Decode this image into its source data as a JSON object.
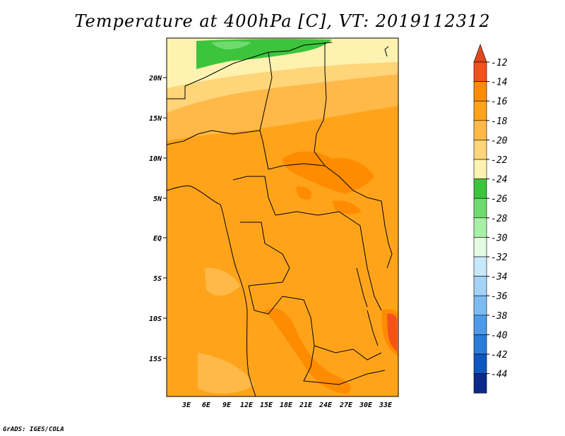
{
  "title": "Temperature at 400hPa [C], VT: 2019112312",
  "credit": "GrADS: IGES/COLA",
  "map": {
    "region": "Central Africa",
    "lon_labels": [
      "3E",
      "6E",
      "9E",
      "12E",
      "15E",
      "18E",
      "21E",
      "24E",
      "27E",
      "30E",
      "33E"
    ],
    "lat_labels": [
      "20N",
      "15N",
      "10N",
      "5N",
      "EQ",
      "5S",
      "10S",
      "15S"
    ]
  },
  "colorbar": {
    "labels": [
      "-12",
      "-14",
      "-16",
      "-18",
      "-20",
      "-22",
      "-24",
      "-26",
      "-28",
      "-30",
      "-32",
      "-34",
      "-36",
      "-38",
      "-40",
      "-42",
      "-44"
    ],
    "colors": [
      "#f4511e",
      "#ff8c00",
      "#ffa41a",
      "#ffb949",
      "#ffd57a",
      "#fff2b0",
      "#3dc43d",
      "#6fdb6f",
      "#a8efa8",
      "#e3fbe3",
      "#c7e8fb",
      "#a5d3f5",
      "#7dbcf0",
      "#4d9ae8",
      "#2a7ad8",
      "#0f56c0",
      "#0b2a8a"
    ],
    "end_colors": {
      "top": "#e0471a",
      "bottom": "#c0c0e8"
    }
  }
}
